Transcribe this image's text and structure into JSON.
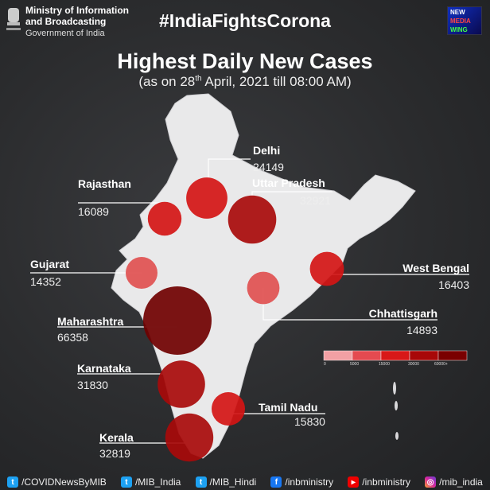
{
  "header": {
    "ministry": "Ministry of Information and Broadcasting",
    "government": "Government of India",
    "hashtag": "#IndiaFightsCorona",
    "logo_text": [
      "NEW",
      "MEDIA",
      "WING"
    ]
  },
  "title": "Highest Daily New Cases",
  "subtitle_pre": "(as on 28",
  "subtitle_sup": "th",
  "subtitle_post": " April, 2021 till 08:00 AM)",
  "states": [
    {
      "name": "Delhi",
      "value": "24149",
      "color": "#d41515"
    },
    {
      "name": "Rajasthan",
      "value": "16089",
      "color": "#d41515"
    },
    {
      "name": "Uttar Pradesh",
      "value": "32921",
      "color": "#a80a0a"
    },
    {
      "name": "Gujarat",
      "value": "14352",
      "color": "#e05050"
    },
    {
      "name": "West Bengal",
      "value": "16403",
      "color": "#d41515"
    },
    {
      "name": "Chhattisgarh",
      "value": "14893",
      "color": "#e05050"
    },
    {
      "name": "Maharashtra",
      "value": "66358",
      "color": "#700000"
    },
    {
      "name": "Karnataka",
      "value": "31830",
      "color": "#a80a0a"
    },
    {
      "name": "Tamil Nadu",
      "value": "15830",
      "color": "#d41515"
    },
    {
      "name": "Kerala",
      "value": "32819",
      "color": "#a80a0a"
    }
  ],
  "legend": {
    "ticks": [
      "0",
      "5000",
      "15000",
      "30000",
      "60000+"
    ],
    "colors": [
      "#f2a0a4",
      "#e44a50",
      "#d81818",
      "#a80808",
      "#7a0000"
    ]
  },
  "footer": [
    {
      "icon": "twitter-icon",
      "handle": "/COVIDNewsByMIB"
    },
    {
      "icon": "twitter-icon",
      "handle": "/MIB_India"
    },
    {
      "icon": "twitter-icon",
      "handle": "/MIB_Hindi"
    },
    {
      "icon": "facebook-icon",
      "handle": "/inbministry"
    },
    {
      "icon": "youtube-icon",
      "handle": "/inbministry"
    },
    {
      "icon": "instagram-icon",
      "handle": "/mib_india"
    }
  ]
}
